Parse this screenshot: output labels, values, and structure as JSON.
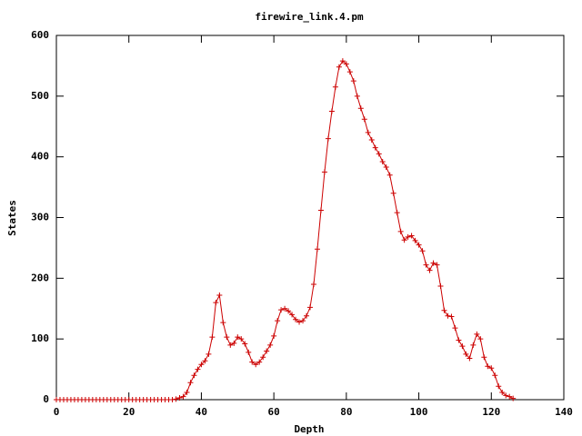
{
  "chart_data": {
    "type": "line",
    "title": "firewire_link.4.pm",
    "x_label": "Depth",
    "y_label": "States",
    "x": [
      0,
      1,
      2,
      3,
      4,
      5,
      6,
      7,
      8,
      9,
      10,
      11,
      12,
      13,
      14,
      15,
      16,
      17,
      18,
      19,
      20,
      21,
      22,
      23,
      24,
      25,
      26,
      27,
      28,
      29,
      30,
      31,
      32,
      33,
      34,
      35,
      36,
      37,
      38,
      39,
      40,
      41,
      42,
      43,
      44,
      45,
      46,
      47,
      48,
      49,
      50,
      51,
      52,
      53,
      54,
      55,
      56,
      57,
      58,
      59,
      60,
      61,
      62,
      63,
      64,
      65,
      66,
      67,
      68,
      69,
      70,
      71,
      72,
      73,
      74,
      75,
      76,
      77,
      78,
      79,
      80,
      81,
      82,
      83,
      84,
      85,
      86,
      87,
      88,
      89,
      90,
      91,
      92,
      93,
      94,
      95,
      96,
      97,
      98,
      99,
      100,
      101,
      102,
      103,
      104,
      105,
      106,
      107,
      108,
      109,
      110,
      111,
      112,
      113,
      114,
      115,
      116,
      117,
      118,
      119,
      120,
      121,
      122,
      123,
      124,
      125,
      126
    ],
    "values": [
      0,
      0,
      0,
      0,
      0,
      0,
      0,
      0,
      0,
      0,
      0,
      0,
      0,
      0,
      0,
      0,
      0,
      0,
      0,
      0,
      0,
      0,
      0,
      0,
      0,
      0,
      0,
      0,
      0,
      0,
      0,
      0,
      0,
      1,
      3,
      5,
      12,
      28,
      40,
      50,
      58,
      64,
      75,
      103,
      160,
      172,
      127,
      103,
      90,
      93,
      103,
      100,
      92,
      78,
      62,
      58,
      62,
      70,
      80,
      90,
      105,
      130,
      148,
      150,
      146,
      140,
      132,
      128,
      130,
      138,
      152,
      190,
      248,
      312,
      375,
      430,
      475,
      515,
      548,
      558,
      553,
      540,
      525,
      500,
      480,
      462,
      440,
      428,
      415,
      405,
      392,
      383,
      370,
      340,
      308,
      277,
      263,
      268,
      270,
      262,
      255,
      245,
      222,
      213,
      225,
      222,
      187,
      147,
      138,
      137,
      118,
      98,
      88,
      75,
      68,
      90,
      108,
      100,
      70,
      55,
      52,
      40,
      22,
      12,
      7,
      5,
      2
    ],
    "color": "#cc0000",
    "xlim": [
      0,
      140
    ],
    "xticks": [
      0,
      20,
      40,
      60,
      80,
      100,
      120,
      140
    ],
    "ylim": [
      0,
      600
    ],
    "yticks": [
      0,
      100,
      200,
      300,
      400,
      500,
      600
    ]
  }
}
